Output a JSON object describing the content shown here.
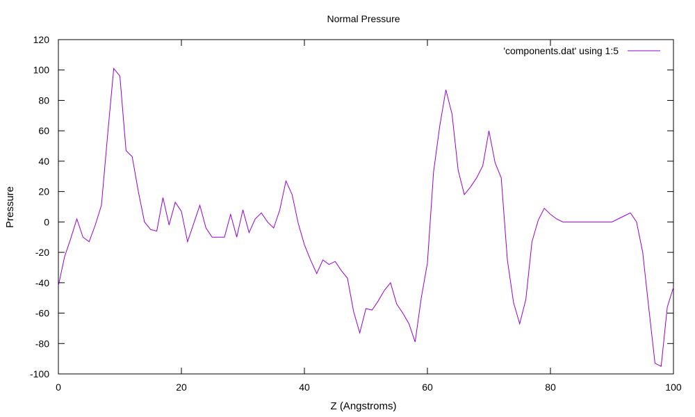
{
  "chart_data": {
    "type": "line",
    "title": "Normal Pressure",
    "xlabel": "Z (Angstroms)",
    "ylabel": "Pressure",
    "xlim": [
      0,
      100
    ],
    "ylim": [
      -100,
      120
    ],
    "xticks": [
      0,
      20,
      40,
      60,
      80,
      100
    ],
    "yticks": [
      -100,
      -80,
      -60,
      -40,
      -20,
      0,
      20,
      40,
      60,
      80,
      100,
      120
    ],
    "grid": false,
    "legend_position": "top-right",
    "series": [
      {
        "name": "'components.dat' using 1:5",
        "color": "#9400d3",
        "x": [
          0,
          1,
          2,
          3,
          4,
          5,
          6,
          7,
          8,
          9,
          10,
          11,
          12,
          13,
          14,
          15,
          16,
          17,
          18,
          19,
          20,
          21,
          22,
          23,
          24,
          25,
          26,
          27,
          28,
          29,
          30,
          31,
          32,
          33,
          34,
          35,
          36,
          37,
          38,
          39,
          40,
          41,
          42,
          43,
          44,
          45,
          46,
          47,
          48,
          49,
          50,
          51,
          52,
          53,
          54,
          55,
          56,
          57,
          58,
          59,
          60,
          61,
          62,
          63,
          64,
          65,
          66,
          67,
          68,
          69,
          70,
          71,
          72,
          73,
          74,
          75,
          76,
          77,
          78,
          79,
          80,
          81,
          82,
          83,
          84,
          85,
          86,
          87,
          88,
          89,
          90,
          91,
          92,
          93,
          94,
          95,
          96,
          97,
          98,
          99,
          100
        ],
        "y": [
          -42,
          -23,
          -11,
          2,
          -10,
          -13,
          -2,
          11,
          57,
          101,
          96,
          47,
          43,
          20,
          0,
          -5,
          -6,
          16,
          -2,
          13,
          7,
          -13,
          -1,
          11,
          -4,
          -10,
          -10,
          -10,
          5,
          -10,
          8,
          -7,
          2,
          6,
          0,
          -4,
          8,
          27,
          18,
          -1,
          -15,
          -25,
          -34,
          -25,
          -28,
          -26,
          -32,
          -37,
          -59,
          -73,
          -57,
          -58,
          -52,
          -45,
          -40,
          -54,
          -60,
          -67,
          -79,
          -50,
          -27,
          33,
          63,
          87,
          71,
          34,
          18,
          23,
          29,
          37,
          60,
          39,
          29,
          -25,
          -53,
          -67,
          -51,
          -13,
          1,
          9,
          5,
          2,
          0,
          0,
          0,
          0,
          0,
          0,
          0,
          0,
          0,
          2,
          4,
          6,
          0,
          -20,
          -57,
          -93,
          -95,
          -56,
          -43
        ]
      }
    ]
  }
}
